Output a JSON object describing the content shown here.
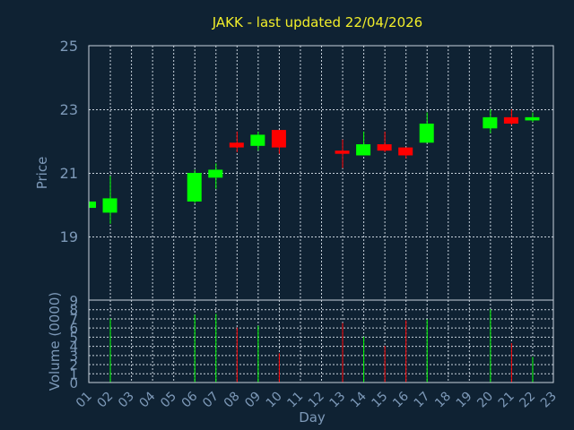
{
  "chart_data": {
    "type": "candlestick",
    "title": "JAKK - last updated 22/04/2026",
    "price_panel": {
      "ylabel": "Price",
      "ylim": [
        17,
        25
      ],
      "yticks": [
        19,
        21,
        23,
        25
      ],
      "grid": true
    },
    "volume_panel": {
      "ylabel": "Volume (0000)",
      "ylim": [
        0,
        9
      ],
      "yticks": [
        0,
        1,
        2,
        3,
        4,
        5,
        6,
        7,
        8,
        9
      ],
      "grid": true
    },
    "xlabel": "Day",
    "x_categories": [
      "01",
      "02",
      "03",
      "04",
      "05",
      "06",
      "07",
      "08",
      "09",
      "10",
      "11",
      "12",
      "13",
      "14",
      "15",
      "16",
      "17",
      "18",
      "19",
      "20",
      "21",
      "22",
      "23"
    ],
    "colors": {
      "up": "#00ff00",
      "down": "#ff0000"
    },
    "candles": [
      {
        "day": "01",
        "open": 19.9,
        "high": 20.1,
        "low": 19.9,
        "close": 20.1,
        "volume": 0
      },
      {
        "day": "02",
        "open": 19.75,
        "high": 20.9,
        "low": 19.4,
        "close": 20.2,
        "volume": 7.0
      },
      {
        "day": "06",
        "open": 20.1,
        "high": 21.1,
        "low": 20.05,
        "close": 21.0,
        "volume": 7.4
      },
      {
        "day": "07",
        "open": 20.85,
        "high": 21.3,
        "low": 20.5,
        "close": 21.1,
        "volume": 7.5
      },
      {
        "day": "08",
        "open": 21.95,
        "high": 22.3,
        "low": 21.65,
        "close": 21.8,
        "volume": 6.0
      },
      {
        "day": "09",
        "open": 21.85,
        "high": 22.3,
        "low": 21.7,
        "close": 22.2,
        "volume": 6.2
      },
      {
        "day": "10",
        "open": 22.35,
        "high": 22.35,
        "low": 21.6,
        "close": 21.8,
        "volume": 3.2
      },
      {
        "day": "13",
        "open": 21.7,
        "high": 22.05,
        "low": 21.15,
        "close": 21.6,
        "volume": 6.5
      },
      {
        "day": "14",
        "open": 21.55,
        "high": 22.3,
        "low": 21.55,
        "close": 21.9,
        "volume": 5.0
      },
      {
        "day": "15",
        "open": 21.9,
        "high": 22.3,
        "low": 21.65,
        "close": 21.7,
        "volume": 4.0
      },
      {
        "day": "16",
        "open": 21.8,
        "high": 21.8,
        "low": 21.45,
        "close": 21.55,
        "volume": 6.8
      },
      {
        "day": "17",
        "open": 21.95,
        "high": 22.9,
        "low": 21.95,
        "close": 22.55,
        "volume": 6.9
      },
      {
        "day": "20",
        "open": 22.4,
        "high": 23.0,
        "low": 22.25,
        "close": 22.75,
        "volume": 8.0
      },
      {
        "day": "21",
        "open": 22.75,
        "high": 23.0,
        "low": 22.5,
        "close": 22.55,
        "volume": 4.3
      },
      {
        "day": "22",
        "open": 22.65,
        "high": 22.9,
        "low": 22.6,
        "close": 22.75,
        "volume": 2.8
      }
    ]
  }
}
